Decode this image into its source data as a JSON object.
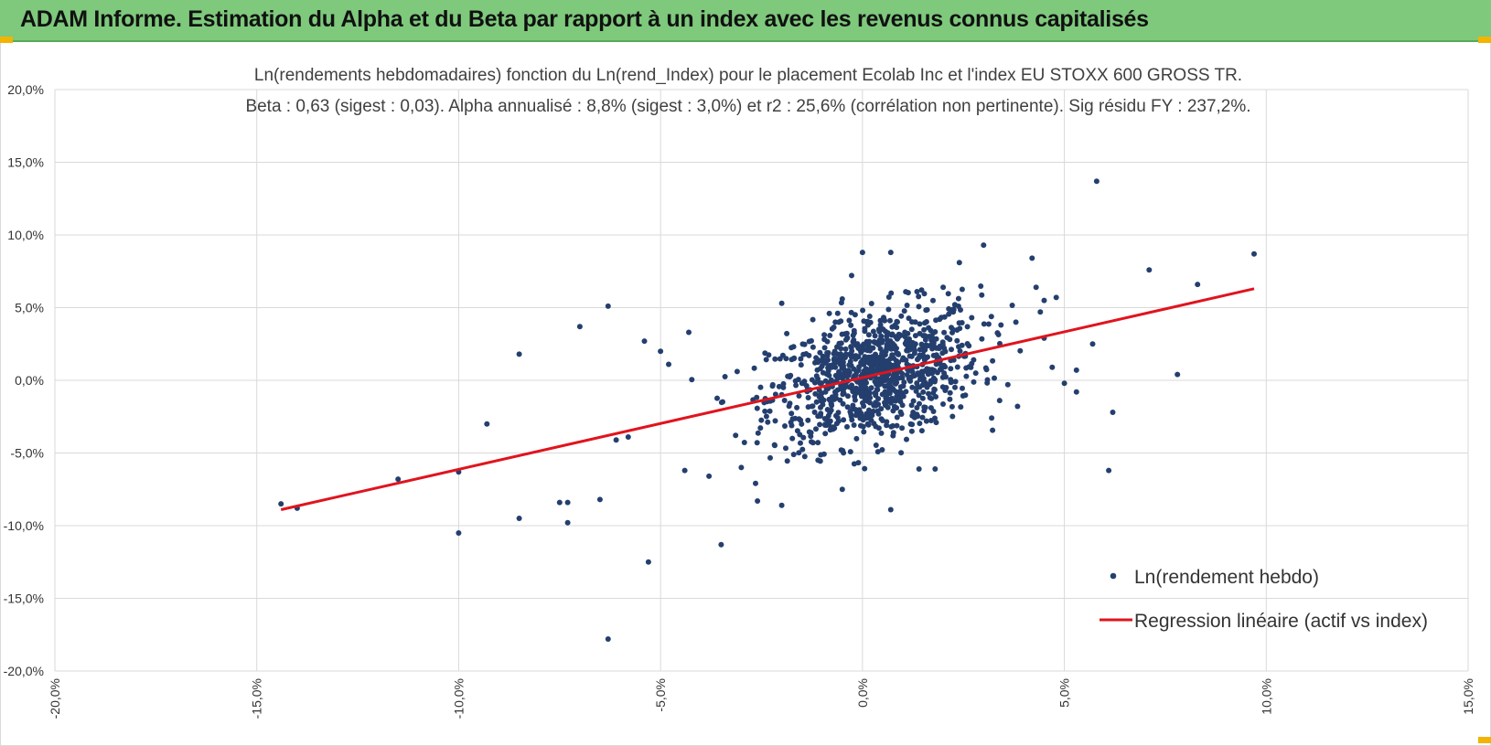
{
  "banner": {
    "title": "ADAM Informe. Estimation du Alpha et du Beta par rapport à un index avec les revenus connus capitalisés"
  },
  "colors": {
    "banner": "#7ec97c",
    "points": "#243f6e",
    "regression": "#e0141e",
    "grid": "#d9d9d9"
  },
  "chart_data": {
    "type": "scatter",
    "title_lines": [
      "Ln(rendements hebdomadaires) fonction du Ln(rend_Index) pour le placement Ecolab Inc et l'index EU STOXX 600 GROSS TR.",
      "Beta : 0,63 (sigest : 0,03). Alpha annualisé : 8,8% (sigest : 3,0%) et r2 : 25,6% (corrélation non pertinente). Sig résidu FY : 237,2%."
    ],
    "xlim": [
      -0.2,
      0.15
    ],
    "ylim": [
      -0.2,
      0.2
    ],
    "x_ticks": [
      -0.2,
      -0.15,
      -0.1,
      -0.05,
      0.0,
      0.05,
      0.1,
      0.15
    ],
    "y_ticks": [
      0.2,
      0.15,
      0.1,
      0.05,
      0.0,
      -0.05,
      -0.1,
      -0.15,
      -0.2
    ],
    "x_tick_labels": [
      "-20,0%",
      "-15,0%",
      "-10,0%",
      "-5,0%",
      "0,0%",
      "5,0%",
      "10,0%",
      "15,0%"
    ],
    "y_tick_labels": [
      "20,0%",
      "15,0%",
      "10,0%",
      "5,0%",
      "0,0%",
      "-5,0%",
      "-10,0%",
      "-15,0%",
      "-20,0%"
    ],
    "grid": true,
    "legend_position": "bottom-right",
    "series": [
      {
        "name": "Ln(rendement hebdo)",
        "type": "scatter",
        "cluster": {
          "count": 1000,
          "center": [
            0.003,
            0.002
          ],
          "sigma_x": 0.013,
          "sigma_y": 0.022,
          "beta": 0.63,
          "alpha": 0.0017
        },
        "outliers": [
          [
            -0.144,
            -0.085
          ],
          [
            -0.14,
            -0.088
          ],
          [
            -0.115,
            -0.068
          ],
          [
            -0.1,
            -0.063
          ],
          [
            -0.1,
            -0.105
          ],
          [
            -0.093,
            -0.03
          ],
          [
            -0.085,
            0.018
          ],
          [
            -0.085,
            -0.095
          ],
          [
            -0.075,
            -0.084
          ],
          [
            -0.073,
            -0.084
          ],
          [
            -0.073,
            -0.098
          ],
          [
            -0.07,
            0.037
          ],
          [
            -0.065,
            -0.082
          ],
          [
            -0.063,
            0.051
          ],
          [
            -0.063,
            -0.178
          ],
          [
            -0.054,
            0.027
          ],
          [
            -0.053,
            -0.125
          ],
          [
            -0.05,
            0.02
          ],
          [
            -0.048,
            0.011
          ],
          [
            -0.035,
            -0.113
          ],
          [
            -0.043,
            0.033
          ],
          [
            -0.03,
            -0.06
          ],
          [
            -0.026,
            -0.083
          ],
          [
            -0.02,
            -0.086
          ],
          [
            -0.02,
            0.053
          ],
          [
            -0.005,
            0.056
          ],
          [
            -0.005,
            -0.075
          ],
          [
            0.0,
            0.088
          ],
          [
            0.007,
            -0.089
          ],
          [
            0.007,
            0.088
          ],
          [
            0.02,
            0.064
          ],
          [
            0.024,
            0.081
          ],
          [
            0.03,
            0.093
          ],
          [
            0.038,
            0.04
          ],
          [
            0.042,
            0.084
          ],
          [
            0.043,
            0.064
          ],
          [
            0.045,
            0.055
          ],
          [
            0.048,
            0.057
          ],
          [
            0.045,
            0.029
          ],
          [
            0.047,
            0.009
          ],
          [
            0.05,
            -0.002
          ],
          [
            0.053,
            -0.008
          ],
          [
            0.053,
            0.007
          ],
          [
            0.057,
            0.025
          ],
          [
            0.058,
            0.137
          ],
          [
            0.061,
            -0.062
          ],
          [
            0.062,
            -0.022
          ],
          [
            0.071,
            0.076
          ],
          [
            0.078,
            0.004
          ],
          [
            0.083,
            0.066
          ],
          [
            0.097,
            0.087
          ],
          [
            0.014,
            -0.061
          ],
          [
            0.018,
            -0.061
          ],
          [
            0.032,
            -0.026
          ],
          [
            0.036,
            -0.003
          ],
          [
            -0.011,
            -0.055
          ],
          [
            -0.038,
            -0.066
          ],
          [
            -0.044,
            -0.062
          ],
          [
            -0.061,
            -0.041
          ],
          [
            -0.058,
            -0.039
          ]
        ]
      },
      {
        "name": "Regression linéaire (actif vs index)",
        "type": "line",
        "x": [
          -0.144,
          0.097
        ],
        "y": [
          -0.089,
          0.063
        ]
      }
    ]
  }
}
